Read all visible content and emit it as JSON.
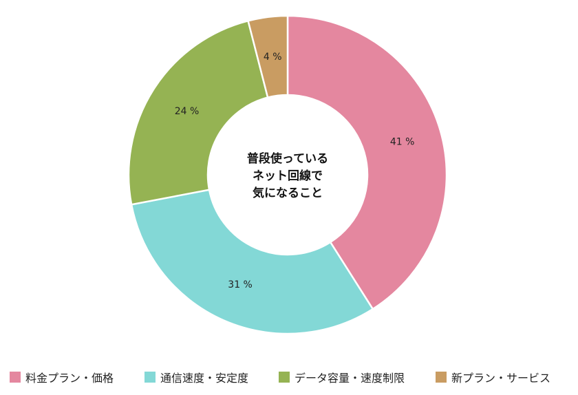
{
  "chart_data": {
    "type": "pie",
    "center_label": [
      "普段使っている",
      "ネット回線で",
      "気になること"
    ],
    "categories": [
      "料金プラン・価格",
      "通信速度・安定度",
      "データ容量・速度制限",
      "新プラン・サービス"
    ],
    "values": [
      41,
      31,
      24,
      4
    ],
    "value_labels": [
      "41 %",
      "31 %",
      "24 %",
      "4 %"
    ],
    "colors": [
      "#e4879f",
      "#83d8d6",
      "#95b353",
      "#c99c62"
    ],
    "legend_position": "bottom"
  }
}
